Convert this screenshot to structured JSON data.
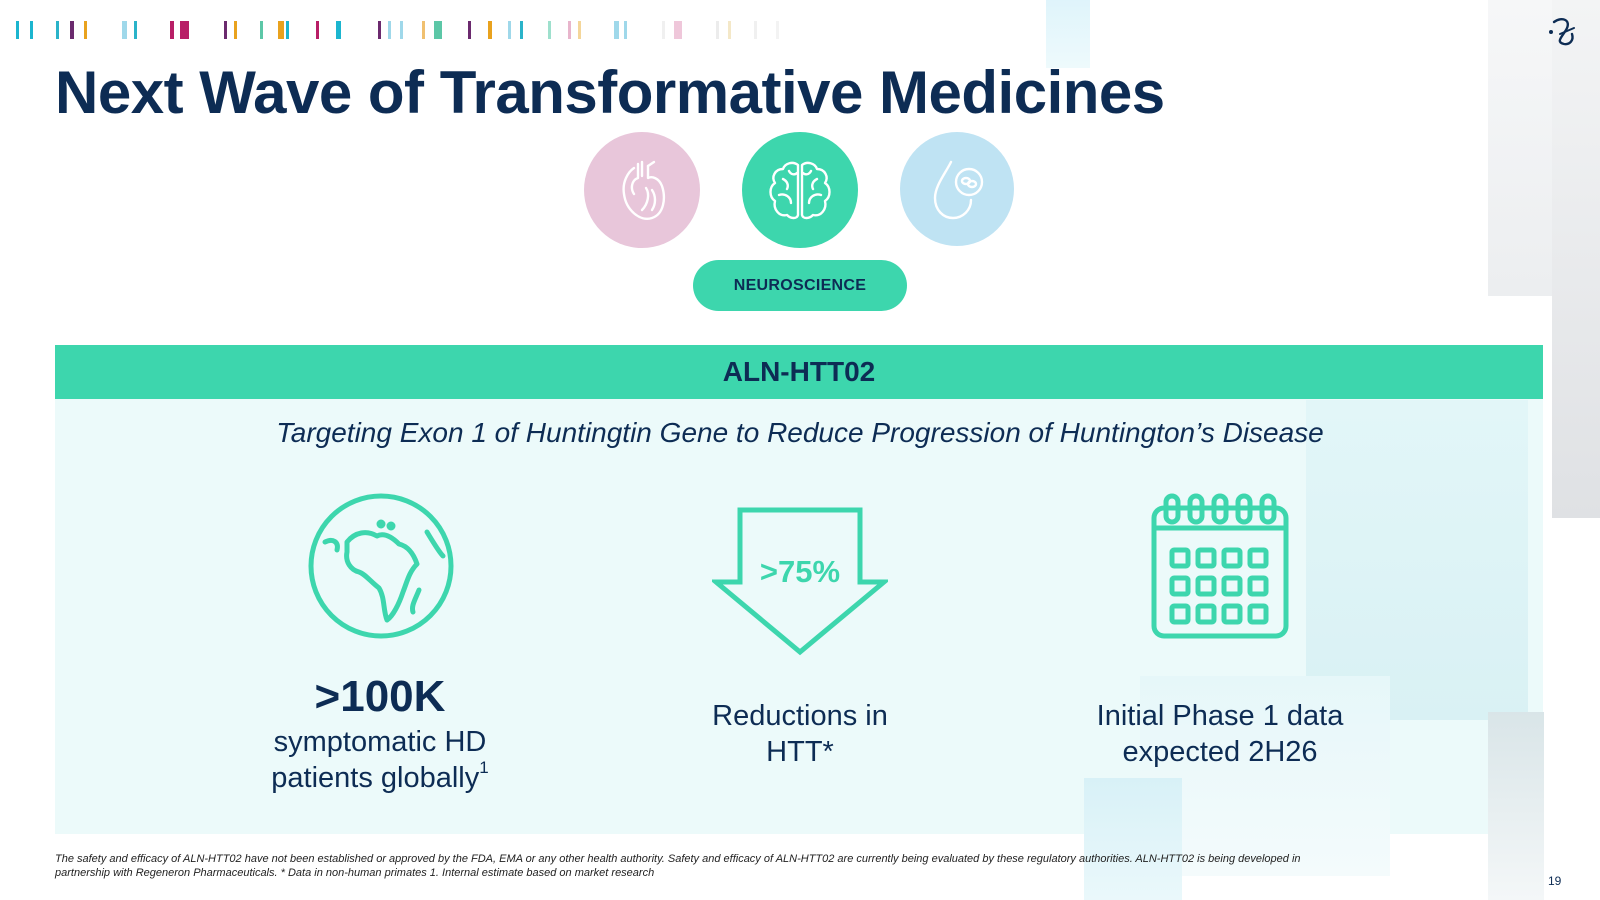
{
  "slide": {
    "title": "Next Wave of Transformative Medicines",
    "page_number": "19"
  },
  "therapeutic_areas": [
    {
      "icon": "heart-icon",
      "color": "#e8c6da",
      "active": false
    },
    {
      "icon": "brain-icon",
      "color": "#3dd6ad",
      "active": true
    },
    {
      "icon": "blood-drop-icon",
      "color": "#bfe3f3",
      "active": false
    }
  ],
  "active_area_label": "NEUROSCIENCE",
  "program": {
    "name": "ALN-HTT02",
    "tagline": "Targeting Exon 1 of Huntingtin Gene to Reduce Progression of Huntington’s Disease"
  },
  "stats": [
    {
      "icon": "globe-icon",
      "headline": ">100K",
      "line1": "symptomatic HD",
      "line2": "patients globally",
      "footnote_marker": "1"
    },
    {
      "icon": "down-arrow-icon",
      "icon_value": ">75%",
      "line1": "Reductions in",
      "line2": "HTT*"
    },
    {
      "icon": "calendar-icon",
      "line1": "Initial Phase 1 data",
      "line2": "expected 2H26"
    }
  ],
  "footnote": {
    "line1": "The safety and efficacy of ALN-HTT02 have not been established or approved by the FDA, EMA or any other health authority. Safety and efficacy of ALN-HTT02 are currently being evaluated by these regulatory authorities. ALN-HTT02 is being developed in",
    "line2": "partnership with Regeneron Pharmaceuticals.   * Data in non-human primates    1. Internal estimate based on market research"
  },
  "colors": {
    "navy": "#0d2c54",
    "accent_green": "#3dd6ad",
    "panel_tint": "#edfafa"
  }
}
